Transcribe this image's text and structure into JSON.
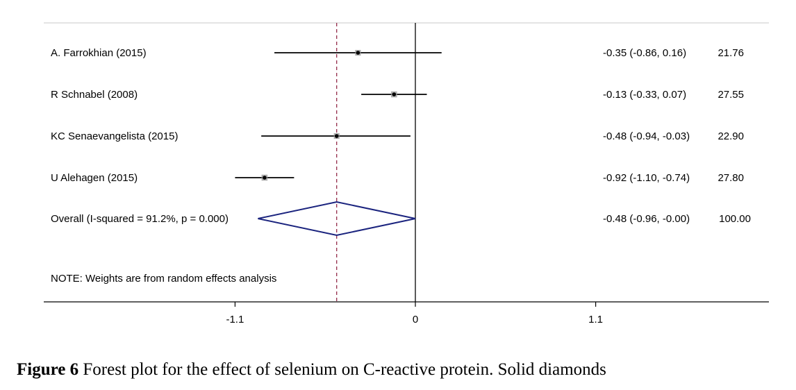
{
  "chart_data": {
    "type": "forest",
    "studies": [
      {
        "label": "A. Farrokhian (2015)",
        "estimate": -0.35,
        "ci_low": -0.86,
        "ci_high": 0.16,
        "weight": 21.76,
        "effect_text": "-0.35 (-0.86, 0.16)",
        "weight_text": "21.76"
      },
      {
        "label": "R Schnabel (2008)",
        "estimate": -0.13,
        "ci_low": -0.33,
        "ci_high": 0.07,
        "weight": 27.55,
        "effect_text": "-0.13 (-0.33, 0.07)",
        "weight_text": "27.55"
      },
      {
        "label": "KC Senaevangelista (2015)",
        "estimate": -0.48,
        "ci_low": -0.94,
        "ci_high": -0.03,
        "weight": 22.9,
        "effect_text": "-0.48 (-0.94, -0.03)",
        "weight_text": "22.90"
      },
      {
        "label": "U Alehagen (2015)",
        "estimate": -0.92,
        "ci_low": -1.1,
        "ci_high": -0.74,
        "weight": 27.8,
        "effect_text": "-0.92 (-1.10, -0.74)",
        "weight_text": "27.80"
      }
    ],
    "overall": {
      "label": "Overall  (I-squared = 91.2%, p = 0.000)",
      "estimate": -0.48,
      "ci_low": -0.96,
      "ci_high": -0.0,
      "weight": 100.0,
      "effect_text": "-0.48 (-0.96, -0.00)",
      "weight_text": "100.00"
    },
    "note": "NOTE: Weights are from random effects analysis",
    "x_ticks": [
      {
        "value": -1.1,
        "label": "-1.1"
      },
      {
        "value": 0,
        "label": "0"
      },
      {
        "value": 1.1,
        "label": "1.1"
      }
    ],
    "null_line_value": 0,
    "colors": {
      "diamond": "#1a237e",
      "pooled_line": "#8b1a3a",
      "ci_line": "#000000",
      "frame": "#c8c8c8"
    }
  },
  "caption": {
    "bold": "Figure 6",
    "text": " Forest plot for the effect of selenium on C-reactive protein. Solid diamonds"
  }
}
